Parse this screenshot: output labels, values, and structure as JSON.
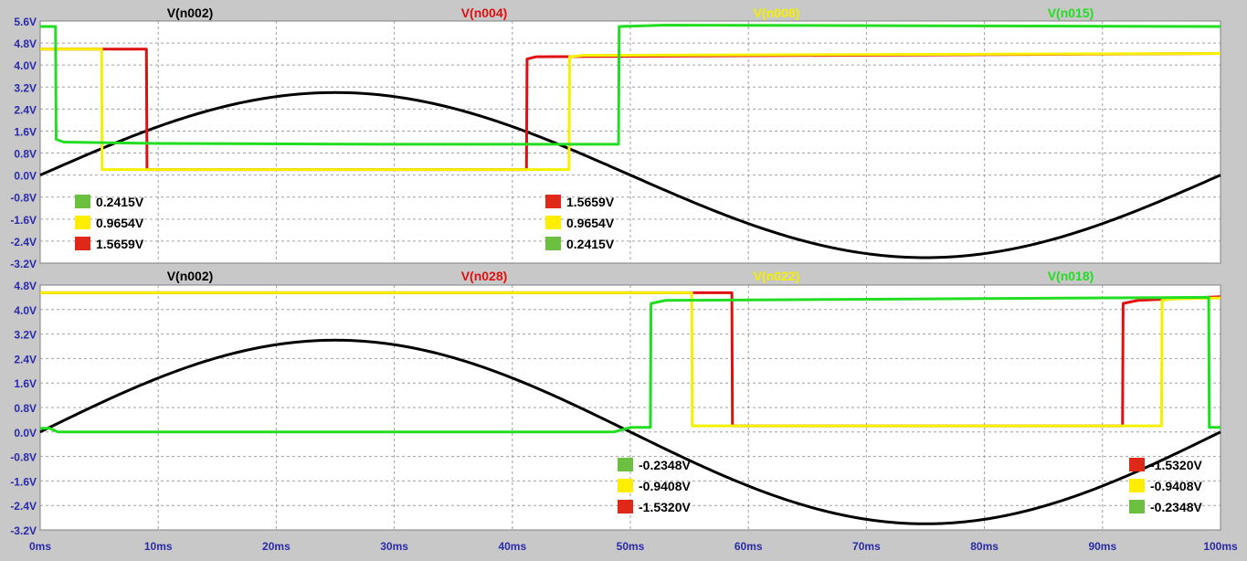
{
  "colors": {
    "background": "#c8c8c8",
    "plot_bg": "#ffffff",
    "grid": "#a0a0a0",
    "tick_text": "#2a2aa8",
    "black": "#000000",
    "red": "#e01010",
    "yellow": "#f5f000",
    "green": "#22dd22",
    "swatch_green": "#6cc040",
    "swatch_red": "#e02818",
    "swatch_yellow": "#ffee00"
  },
  "chart_data": [
    {
      "type": "line",
      "xlim": [
        0,
        100
      ],
      "ylim": [
        -3.2,
        5.6
      ],
      "x_ticks": [
        "0ms",
        "10ms",
        "20ms",
        "30ms",
        "40ms",
        "50ms",
        "60ms",
        "70ms",
        "80ms",
        "90ms",
        "100ms"
      ],
      "y_ticks": [
        "5.6V",
        "4.8V",
        "4.0V",
        "3.2V",
        "2.4V",
        "1.6V",
        "0.8V",
        "0.0V",
        "-0.8V",
        "-1.6V",
        "-2.4V",
        "-3.2V"
      ],
      "grid": true,
      "series": [
        {
          "name": "V(n002)",
          "color": "#000000",
          "shape": "sine",
          "amplitude": 3.0,
          "period_ms": 100
        },
        {
          "name": "V(n004)",
          "color": "#e01010",
          "points": [
            [
              0,
              4.58
            ],
            [
              6.5,
              4.58
            ],
            [
              9.0,
              4.58
            ],
            [
              9.05,
              0.2
            ],
            [
              41.2,
              0.2
            ],
            [
              41.25,
              4.22
            ],
            [
              42,
              4.3
            ],
            [
              100,
              4.42
            ]
          ]
        },
        {
          "name": "V(n008)",
          "color": "#f5f000",
          "points": [
            [
              0,
              4.58
            ],
            [
              5.2,
              4.58
            ],
            [
              5.25,
              0.2
            ],
            [
              44.8,
              0.2
            ],
            [
              44.85,
              4.3
            ],
            [
              46,
              4.35
            ],
            [
              100,
              4.42
            ]
          ]
        },
        {
          "name": "V(n015)",
          "color": "#22dd22",
          "points": [
            [
              0,
              5.4
            ],
            [
              1.3,
              5.4
            ],
            [
              1.35,
              1.3
            ],
            [
              2,
              1.2
            ],
            [
              10,
              1.15
            ],
            [
              30,
              1.12
            ],
            [
              49.0,
              1.12
            ],
            [
              49.05,
              5.4
            ],
            [
              53,
              5.45
            ],
            [
              100,
              5.4
            ]
          ]
        }
      ],
      "annotations": {
        "left": [
          {
            "text": "0.2415V",
            "swatch": "swatch_green"
          },
          {
            "text": "0.9654V",
            "swatch": "swatch_yellow"
          },
          {
            "text": "1.5659V",
            "swatch": "swatch_red"
          }
        ],
        "right": [
          {
            "text": "1.5659V",
            "swatch": "swatch_red"
          },
          {
            "text": "0.9654V",
            "swatch": "swatch_yellow"
          },
          {
            "text": "0.2415V",
            "swatch": "swatch_green"
          }
        ]
      }
    },
    {
      "type": "line",
      "xlim": [
        0,
        100
      ],
      "ylim": [
        -3.2,
        4.8
      ],
      "x_ticks": [
        "0ms",
        "10ms",
        "20ms",
        "30ms",
        "40ms",
        "50ms",
        "60ms",
        "70ms",
        "80ms",
        "90ms",
        "100ms"
      ],
      "y_ticks": [
        "4.8V",
        "4.0V",
        "3.2V",
        "2.4V",
        "1.6V",
        "0.8V",
        "0.0V",
        "-0.8V",
        "-1.6V",
        "-2.4V",
        "-3.2V"
      ],
      "grid": true,
      "series": [
        {
          "name": "V(n002)",
          "color": "#000000",
          "shape": "sine",
          "amplitude": 3.0,
          "period_ms": 100
        },
        {
          "name": "V(n028)",
          "color": "#e01010",
          "points": [
            [
              0,
              4.55
            ],
            [
              58.6,
              4.55
            ],
            [
              58.65,
              0.2
            ],
            [
              91.7,
              0.2
            ],
            [
              91.75,
              4.2
            ],
            [
              93,
              4.3
            ],
            [
              100,
              4.42
            ]
          ]
        },
        {
          "name": "V(n022)",
          "color": "#f5f000",
          "points": [
            [
              0,
              4.55
            ],
            [
              55.2,
              4.55
            ],
            [
              55.25,
              0.2
            ],
            [
              95.0,
              0.2
            ],
            [
              95.05,
              4.3
            ],
            [
              96,
              4.35
            ],
            [
              100,
              4.38
            ]
          ]
        },
        {
          "name": "V(n018)",
          "color": "#22dd22",
          "points": [
            [
              0,
              0.12
            ],
            [
              0.8,
              0.12
            ],
            [
              1.5,
              0.0
            ],
            [
              48.6,
              0.0
            ],
            [
              50,
              0.15
            ],
            [
              51.7,
              0.15
            ],
            [
              51.75,
              4.2
            ],
            [
              53,
              4.3
            ],
            [
              99.0,
              4.4
            ],
            [
              99.05,
              0.15
            ],
            [
              100,
              0.15
            ]
          ]
        }
      ],
      "annotations": {
        "left": [
          {
            "text": "-0.2348V",
            "swatch": "swatch_green"
          },
          {
            "text": "-0.9408V",
            "swatch": "swatch_yellow"
          },
          {
            "text": "-1.5320V",
            "swatch": "swatch_red"
          }
        ],
        "right": [
          {
            "text": "-1.5320V",
            "swatch": "swatch_red"
          },
          {
            "text": "-0.9408V",
            "swatch": "swatch_yellow"
          },
          {
            "text": "-0.2348V",
            "swatch": "swatch_green"
          }
        ]
      }
    }
  ]
}
